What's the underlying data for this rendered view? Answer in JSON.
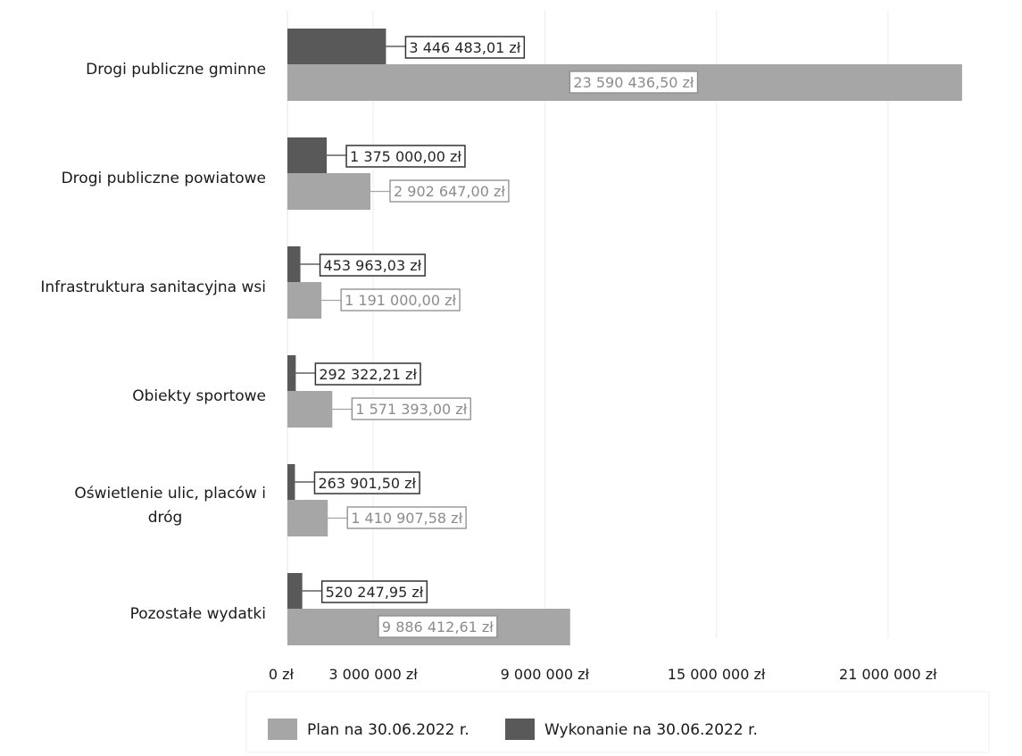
{
  "chart_data": {
    "type": "bar",
    "orientation": "horizontal",
    "categories": [
      "Drogi publiczne gminne",
      "Drogi publiczne powiatowe",
      "Infrastruktura sanitacyjna wsi",
      "Obiekty sportowe",
      "Oświetlenie ulic, placów i dróg",
      "Pozostałe wydatki"
    ],
    "category_lines": [
      [
        "Drogi publiczne gminne"
      ],
      [
        "Drogi publiczne powiatowe"
      ],
      [
        "Infrastruktura sanitacyjna wsi"
      ],
      [
        "Obiekty sportowe"
      ],
      [
        "Oświetlenie ulic, placów i",
        "dróg"
      ],
      [
        "Pozostałe wydatki"
      ]
    ],
    "series": [
      {
        "name": "Wykonanie na 30.06.2022 r.",
        "color": "#595959",
        "values": [
          3446483.01,
          1375000.0,
          453963.03,
          292322.21,
          263901.5,
          520247.95
        ],
        "labels": [
          "3 446 483,01 zł",
          "1 375 000,00 zł",
          "453 963,03 zł",
          "292 322,21 zł",
          "263 901,50 zł",
          "520 247,95 zł"
        ]
      },
      {
        "name": "Plan na 30.06.2022 r.",
        "color": "#a6a6a6",
        "values": [
          23590436.5,
          2902647.0,
          1191000.0,
          1571393.0,
          1410907.58,
          9886412.61
        ],
        "labels": [
          "23 590 436,50 zł",
          "2 902 647,00 zł",
          "1 191 000,00 zł",
          "1 571 393,00 zł",
          "1 410 907,58 zł",
          "9 886 412,61 zł"
        ]
      }
    ],
    "xticks": [
      {
        "value": 0,
        "label": "0 zł"
      },
      {
        "value": 3000000,
        "label": "3 000 000 zł"
      },
      {
        "value": 9000000,
        "label": "9 000 000 zł"
      },
      {
        "value": 15000000,
        "label": "15 000 000 zł"
      },
      {
        "value": 21000000,
        "label": "21 000 000 zł"
      }
    ],
    "xlim": [
      0,
      24000000
    ],
    "legend": {
      "position": "bottom",
      "items": [
        {
          "label": "Plan na 30.06.2022 r.",
          "color": "#a6a6a6"
        },
        {
          "label": "Wykonanie na 30.06.2022 r.",
          "color": "#595959"
        }
      ]
    },
    "grid": true,
    "title": "",
    "xlabel": "",
    "ylabel": ""
  }
}
